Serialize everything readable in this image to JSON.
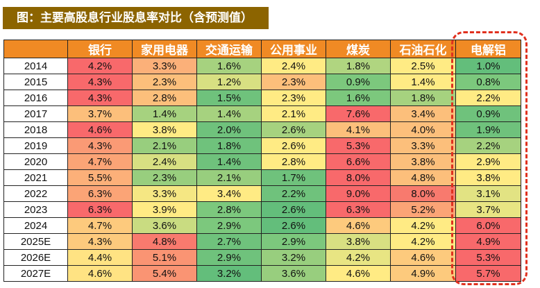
{
  "title": "图：主要高股息行业股息率对比（含预测值）",
  "chart_data": {
    "type": "heatmap",
    "columns": [
      "",
      "银行",
      "家用电器",
      "交通运输",
      "公用事业",
      "煤炭",
      "石油石化",
      "电解铝"
    ],
    "highlighted_column": "电解铝",
    "highlight_color": "#e0301e",
    "rows": [
      {
        "year": "2014",
        "values": [
          "4.2%",
          "3.3%",
          "1.6%",
          "2.4%",
          "1.8%",
          "2.5%",
          "1.0%"
        ],
        "colors": [
          "#f8696b",
          "#fbb079",
          "#a6d27f",
          "#ffeb84",
          "#b0d580",
          "#ffeb84",
          "#63be7b"
        ]
      },
      {
        "year": "2015",
        "values": [
          "4.3%",
          "2.3%",
          "1.2%",
          "2.3%",
          "0.9%",
          "1.4%",
          "0.8%"
        ],
        "colors": [
          "#f8696b",
          "#fcbf7b",
          "#d8e082",
          "#fcbf7b",
          "#7cc87d",
          "#ffeb84",
          "#7cc87d"
        ]
      },
      {
        "year": "2016",
        "values": [
          "4.3%",
          "2.8%",
          "1.5%",
          "2.3%",
          "1.6%",
          "1.8%",
          "2.2%"
        ],
        "colors": [
          "#f8696b",
          "#fcbf7b",
          "#6fc27c",
          "#ffeb84",
          "#7cc87d",
          "#a6d27f",
          "#ffeb84"
        ]
      },
      {
        "year": "2017",
        "values": [
          "3.7%",
          "1.4%",
          "1.4%",
          "2.1%",
          "7.6%",
          "3.4%",
          "0.9%"
        ],
        "colors": [
          "#fcbf7b",
          "#a6d27f",
          "#a6d27f",
          "#ffeb84",
          "#f8696b",
          "#fcbf7b",
          "#6fc27c"
        ]
      },
      {
        "year": "2018",
        "values": [
          "4.6%",
          "3.8%",
          "2.0%",
          "2.6%",
          "4.1%",
          "4.0%",
          "1.9%"
        ],
        "colors": [
          "#f8696b",
          "#ffeb84",
          "#6fc27c",
          "#a6d27f",
          "#fcbf7b",
          "#fcbf7b",
          "#6fc27c"
        ]
      },
      {
        "year": "2019",
        "values": [
          "4.3%",
          "2.1%",
          "1.8%",
          "2.6%",
          "5.3%",
          "3.3%",
          "2.2%"
        ],
        "colors": [
          "#fa9a75",
          "#98ce7e",
          "#6fc27c",
          "#ffeb84",
          "#f8696b",
          "#fcbf7b",
          "#a6d27f"
        ]
      },
      {
        "year": "2020",
        "values": [
          "4.7%",
          "2.4%",
          "1.4%",
          "2.8%",
          "6.6%",
          "3.8%",
          "2.9%"
        ],
        "colors": [
          "#fba476",
          "#d8e082",
          "#6fc27c",
          "#ffeb84",
          "#f8696b",
          "#fcbf7b",
          "#ffeb84"
        ]
      },
      {
        "year": "2021",
        "values": [
          "5.5%",
          "2.3%",
          "2.1%",
          "1.7%",
          "8.0%",
          "4.8%",
          "3.8%"
        ],
        "colors": [
          "#fcb079",
          "#98ce7e",
          "#98ce7e",
          "#6fc27c",
          "#f8696b",
          "#fcbf7b",
          "#ffeb84"
        ]
      },
      {
        "year": "2022",
        "values": [
          "6.3%",
          "3.3%",
          "3.4%",
          "2.2%",
          "9.0%",
          "8.0%",
          "3.1%"
        ],
        "colors": [
          "#fba476",
          "#f5e783",
          "#ffeb84",
          "#6fc27c",
          "#f8696b",
          "#f87a6e",
          "#e2e383"
        ]
      },
      {
        "year": "2023",
        "values": [
          "6.3%",
          "3.9%",
          "2.8%",
          "2.6%",
          "6.3%",
          "5.2%",
          "3.7%"
        ],
        "colors": [
          "#f8696b",
          "#ffeb84",
          "#7cc87d",
          "#63be7b",
          "#f8696b",
          "#fba476",
          "#e8e583"
        ]
      },
      {
        "year": "2024",
        "values": [
          "4.7%",
          "3.6%",
          "2.9%",
          "2.6%",
          "4.6%",
          "4.2%",
          "6.0%"
        ],
        "colors": [
          "#fdca7d",
          "#c9dc81",
          "#7cc87d",
          "#63be7b",
          "#fdca7d",
          "#ffeb84",
          "#f8696b"
        ]
      },
      {
        "year": "2025E",
        "values": [
          "4.3%",
          "4.8%",
          "2.7%",
          "2.9%",
          "3.8%",
          "4.2%",
          "4.9%"
        ],
        "colors": [
          "#fdca7d",
          "#f87a6e",
          "#6fc27c",
          "#7cc87d",
          "#d8e082",
          "#ffeb84",
          "#f8696b"
        ]
      },
      {
        "year": "2026E",
        "values": [
          "4.4%",
          "5.1%",
          "2.9%",
          "3.2%",
          "4.2%",
          "4.6%",
          "5.3%"
        ],
        "colors": [
          "#ffe383",
          "#fa9473",
          "#6fc27c",
          "#98ce7e",
          "#e8e583",
          "#fdca7d",
          "#f8696b"
        ]
      },
      {
        "year": "2027E",
        "values": [
          "4.6%",
          "5.4%",
          "3.2%",
          "3.6%",
          "4.6%",
          "4.9%",
          "5.7%"
        ],
        "colors": [
          "#ffe383",
          "#fa9473",
          "#63be7b",
          "#98ce7e",
          "#ffeb84",
          "#fdca7d",
          "#f8696b"
        ]
      }
    ]
  }
}
